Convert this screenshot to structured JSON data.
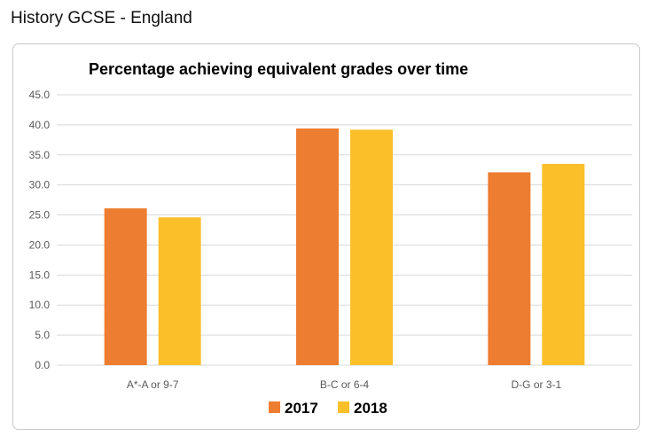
{
  "header": {
    "title": "History GCSE - England"
  },
  "chart_data": {
    "type": "bar",
    "title": "Percentage achieving equivalent grades over time",
    "xlabel": "",
    "ylabel": "",
    "categories": [
      "A*-A or 9-7",
      "B-C or 6-4",
      "D-G or 3-1"
    ],
    "series": [
      {
        "name": "2017",
        "values": [
          26.1,
          39.4,
          32.1
        ],
        "color": "#ED7D31"
      },
      {
        "name": "2018",
        "values": [
          24.6,
          39.2,
          33.5
        ],
        "color": "#FBBF2A"
      }
    ],
    "ylim": [
      0,
      45
    ],
    "yticks": [
      "0.0",
      "5.0",
      "10.0",
      "15.0",
      "20.0",
      "25.0",
      "30.0",
      "35.0",
      "40.0",
      "45.0"
    ],
    "grid": true,
    "legend_position": "bottom"
  }
}
